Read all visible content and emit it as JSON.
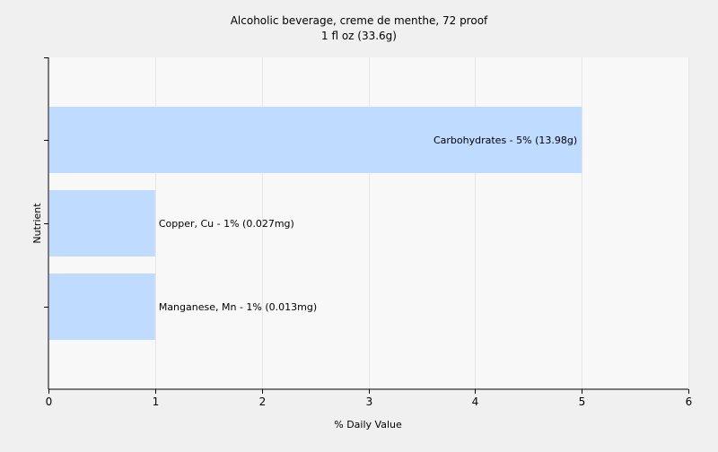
{
  "chart_data": {
    "type": "bar",
    "orientation": "horizontal",
    "title": "Alcoholic beverage, creme de menthe, 72 proof",
    "subtitle": "1 fl oz (33.6g)",
    "xlabel": "% Daily Value",
    "ylabel": "Nutrient",
    "xlim": [
      0,
      6
    ],
    "xticks": [
      "0",
      "1",
      "2",
      "3",
      "4",
      "5",
      "6"
    ],
    "grid": true,
    "categories": [
      "Carbohydrates",
      "Copper, Cu",
      "Manganese, Mn"
    ],
    "values": [
      5,
      1,
      1
    ],
    "labels": [
      "Carbohydrates - 5% (13.98g)",
      "Copper, Cu - 1% (0.027mg)",
      "Manganese, Mn - 1% (0.013mg)"
    ],
    "colors": {
      "bar": "#bfdbff",
      "plot_background": "#f8f8f8",
      "page_background": "#f0f0f0",
      "grid": "#e6e6e6",
      "axis": "#000000"
    }
  }
}
